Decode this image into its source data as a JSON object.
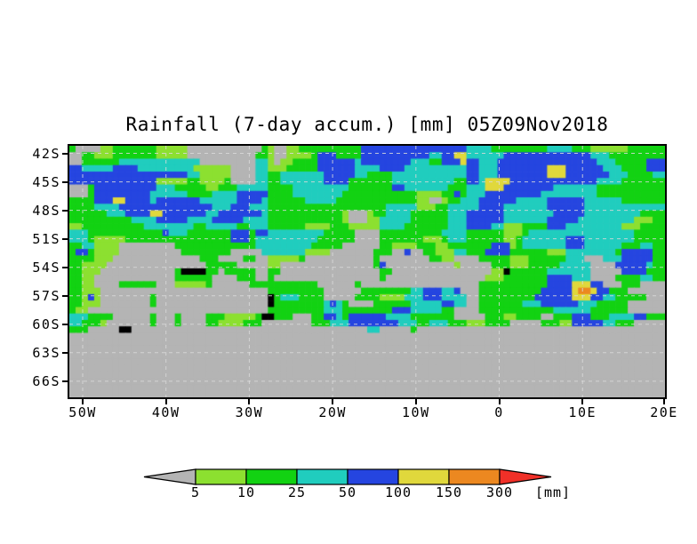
{
  "figure": {
    "title": "Rainfall (7-day accum.) [mm] 05Z09Nov2018"
  },
  "chart_data": {
    "type": "heatmap",
    "title": "Rainfall (7-day accum.) [mm] 05Z09Nov2018",
    "variable": "7-day accumulated rainfall",
    "units": "mm",
    "x_axis": {
      "range_lon": [
        -51.6,
        19.9
      ],
      "ticks": [
        {
          "label": "50W",
          "lon": -50
        },
        {
          "label": "40W",
          "lon": -40
        },
        {
          "label": "30W",
          "lon": -30
        },
        {
          "label": "20W",
          "lon": -20
        },
        {
          "label": "10W",
          "lon": -10
        },
        {
          "label": "0",
          "lon": 0
        },
        {
          "label": "10E",
          "lon": 10
        },
        {
          "label": "20E",
          "lon": 20
        }
      ]
    },
    "y_axis": {
      "range_lat": [
        -41.2,
        -67.7
      ],
      "ticks": [
        {
          "label": "42S",
          "lat": -42
        },
        {
          "label": "45S",
          "lat": -45
        },
        {
          "label": "48S",
          "lat": -48
        },
        {
          "label": "51S",
          "lat": -51
        },
        {
          "label": "54S",
          "lat": -54
        },
        {
          "label": "57S",
          "lat": -57
        },
        {
          "label": "60S",
          "lat": -60
        },
        {
          "label": "63S",
          "lat": -63
        },
        {
          "label": "66S",
          "lat": -66
        }
      ]
    },
    "gridlines": {
      "color": "#dadada",
      "style": "dashed"
    },
    "levels": [
      {
        "code": "0",
        "color": "#b4b4b4",
        "range": "< 5"
      },
      {
        "code": "1",
        "color": "#8ce030",
        "range": "5-10"
      },
      {
        "code": "2",
        "color": "#12d212",
        "range": "10-25"
      },
      {
        "code": "3",
        "color": "#20cdbe",
        "range": "25-50"
      },
      {
        "code": "4",
        "color": "#2545e0",
        "range": "50-100"
      },
      {
        "code": "5",
        "color": "#e0d83c",
        "range": "100-150"
      },
      {
        "code": "6",
        "color": "#ec8820",
        "range": "150-300"
      },
      {
        "code": "7",
        "color": "#f03028",
        "range": "> 300"
      },
      {
        "code": "8",
        "color": "#000000",
        "range": "land"
      }
    ],
    "grid_cols": 96,
    "grid_rows": 39,
    "grid": [
      "200001122222221111100000000000021001122222222224444444444444444433332222222223333222111111222222",
      "002211122222221111100000000000221001111244422224444444444433445533333344444444444444333222222222",
      "002222223333333333333000000000331011222244444434444444433322444544333444444444444444433322222444",
      "443333344443333333331111110000331112222244444433334444333333333344333444444445554444443332222444",
      "444444444444444444433111110000332233333334444433222233333333333344333444444445554444444333222233",
      "444444444444441111122111120000332233333334444222222233333333332244355554444444444444433332222222",
      "000244444444443332222211222333332222333333333222222244333333322233355544444444333333322222222222",
      "000244444444433333322223333444442222333333332222222222221111224233344444444433333333322222222222",
      "222244455444434444444333333444432222223333322222222222221100122333444444333334444443333332222222",
      "222233334444444444444443334443332222222222222222222333331112233333444433333334444443333333333333",
      "222222333444455444444433444444432222222222221000122333322222233344444433333333444443333333332222",
      "222222222233334444433334444433332222222222221000113333322222233344444433333334444433333333311122",
      "112222222222333333332233333223332222221111222111113333222222233344443311122224443333333331112222",
      "333222222222222433322222224442443333333332222200002222222222333322222211123333333333333333322222",
      "333211111222222222222222224442333333333322222200002222222111233322222211233333334443333333322222",
      "223311110000000002222222222222333333333222220000002211112221122222224441233333334443333332223322",
      "244211110000000000222222220000033333331111000000022200400221113322244442222221113333333324444422",
      "222211100000000000000222000022001111120000000000020000000022110000222221112222223330003334444422",
      "221111000000000000000022222000001100000000000000024000000000001000002221112222233333000044444322",
      "221110000000000002888822022222002200000000000000002200000000000000001182222223333333000004444222",
      "221100000000000002222220000222002000000000000000002000000000000000011122222224444333000022223322",
      "221100002222220001111120000002222222222200000020000000000000000000222222222224444555440002220000",
      "221110000000000000000000000000002222222220000002222222233444334000222222222244444566544222000000",
      "221410000000020000000000000000008233322220000022221111333444333300222222222444444555443322222000",
      "221110000000020000000000000000008222222223432000022222233333443300222222233344444433322222000000",
      "211000000000000000000000000000002222222223332222222244433333220000222222222222333333222222000000",
      "333222200000020002000022211111288222000224432444444333322222220000022211222200222444222333344222",
      "332221000000020002000022111122200000000222333444444443332233322211122220000022211444443322200000",
      "222000008800000000000000000000000000000000000000330000020000000000000000000000000000000000000000",
      "0",
      "0",
      "0",
      "0",
      "0",
      "0",
      "0",
      "0",
      "0",
      "0"
    ],
    "colorbar": {
      "labels": [
        "5",
        "10",
        "25",
        "50",
        "100",
        "150",
        "300"
      ],
      "units_label": "[mm]",
      "segment_colors": [
        "#8ce030",
        "#12d212",
        "#20cdbe",
        "#2545e0",
        "#e0d83c",
        "#ec8820"
      ],
      "left_arrow_color": "#b4b4b4",
      "right_arrow_color": "#f03028"
    }
  }
}
